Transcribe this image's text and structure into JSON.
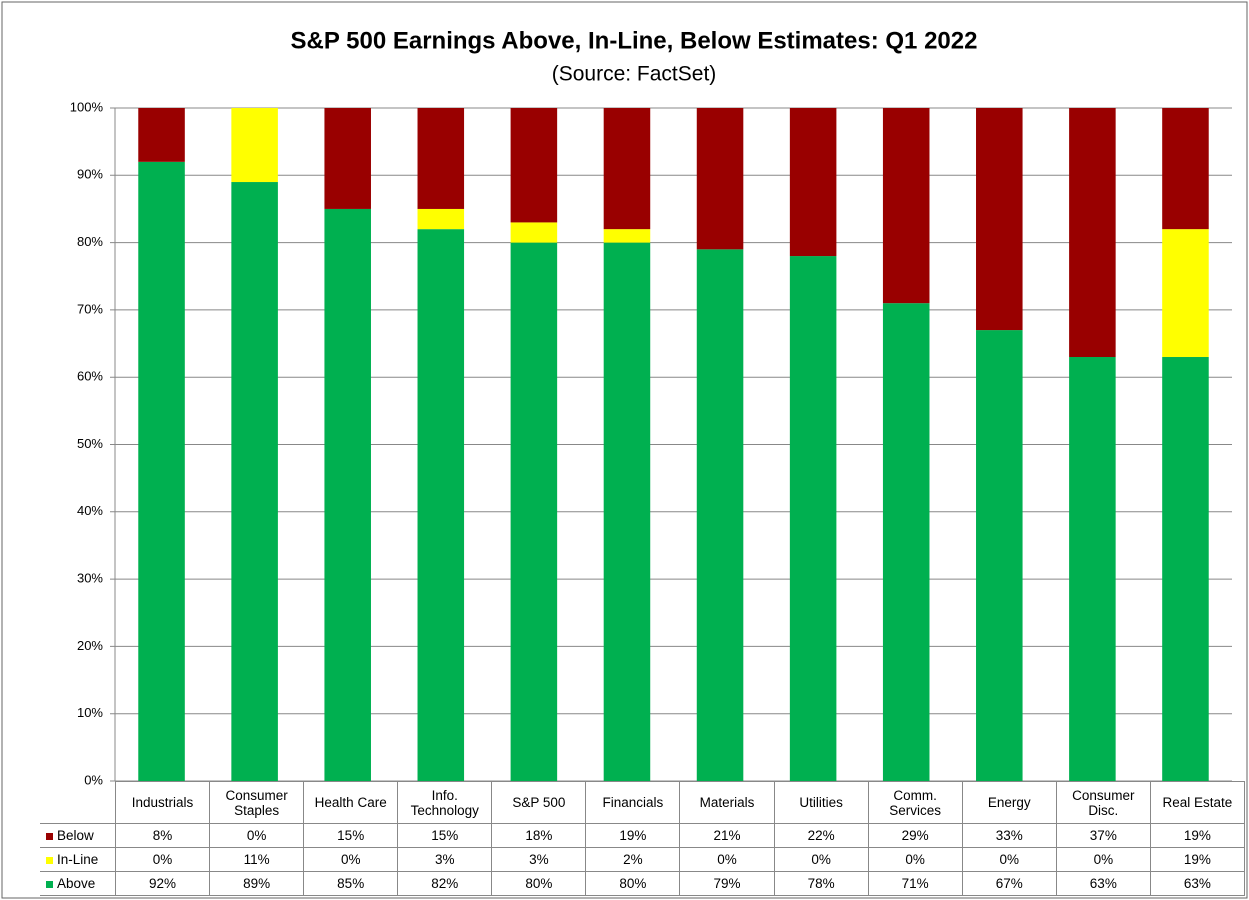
{
  "chart_data": {
    "type": "stacked_bar",
    "title": "S&P 500 Earnings Above, In-Line, Below Estimates: Q1 2022",
    "subtitle": "(Source: FactSet)",
    "categories": [
      "Industrials",
      "Consumer\nStaples",
      "Health Care",
      "Info.\nTechnology",
      "S&P 500",
      "Financials",
      "Materials",
      "Utilities",
      "Comm.\nServices",
      "Energy",
      "Consumer\nDisc.",
      "Real Estate"
    ],
    "series": [
      {
        "name": "Below",
        "color": "#990000",
        "values": [
          8,
          0,
          15,
          15,
          18,
          19,
          21,
          22,
          29,
          33,
          37,
          19
        ],
        "value_labels": [
          "8%",
          "0%",
          "15%",
          "15%",
          "18%",
          "19%",
          "21%",
          "22%",
          "29%",
          "33%",
          "37%",
          "19%"
        ]
      },
      {
        "name": "In-Line",
        "color": "#ffff00",
        "values": [
          0,
          11,
          0,
          3,
          3,
          2,
          0,
          0,
          0,
          0,
          0,
          19
        ],
        "value_labels": [
          "0%",
          "11%",
          "0%",
          "3%",
          "3%",
          "2%",
          "0%",
          "0%",
          "0%",
          "0%",
          "0%",
          "19%"
        ]
      },
      {
        "name": "Above",
        "color": "#00b050",
        "values": [
          92,
          89,
          85,
          82,
          80,
          80,
          79,
          78,
          71,
          67,
          63,
          63
        ],
        "value_labels": [
          "92%",
          "89%",
          "85%",
          "82%",
          "80%",
          "80%",
          "79%",
          "78%",
          "71%",
          "67%",
          "63%",
          "63%"
        ]
      }
    ],
    "ylim": [
      0,
      100
    ],
    "yticks": [
      {
        "value": 0,
        "label": "0%"
      },
      {
        "value": 10,
        "label": "10%"
      },
      {
        "value": 20,
        "label": "20%"
      },
      {
        "value": 30,
        "label": "30%"
      },
      {
        "value": 40,
        "label": "40%"
      },
      {
        "value": 50,
        "label": "50%"
      },
      {
        "value": 60,
        "label": "60%"
      },
      {
        "value": 70,
        "label": "70%"
      },
      {
        "value": 80,
        "label": "80%"
      },
      {
        "value": 90,
        "label": "90%"
      },
      {
        "value": 100,
        "label": "100%"
      }
    ],
    "grid": true
  }
}
